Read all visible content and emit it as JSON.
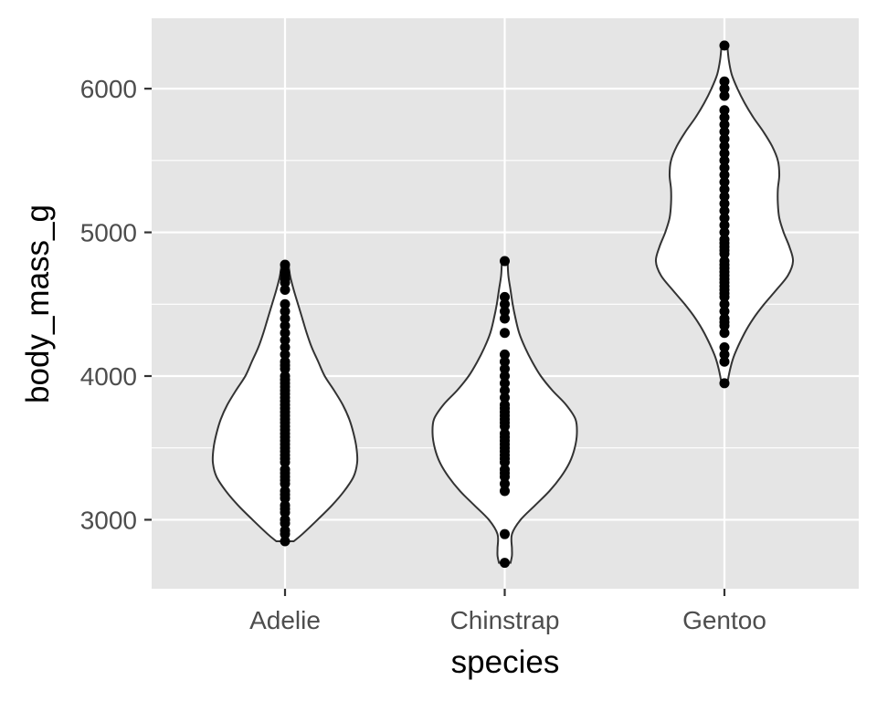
{
  "chart_data": {
    "type": "violin",
    "xlabel": "species",
    "ylabel": "body_mass_g",
    "ylim": [
      2520,
      6490
    ],
    "yticks": [
      3000,
      4000,
      5000,
      6000
    ],
    "ytick_labels": [
      "3000",
      "4000",
      "5000",
      "6000"
    ],
    "categories": [
      "Adelie",
      "Chinstrap",
      "Gentoo"
    ],
    "grid": true,
    "colors": {
      "panel": "#e5e5e5",
      "grid": "#ffffff",
      "violin_fill": "#ffffff",
      "violin_stroke": "#333333",
      "point": "#000000"
    },
    "violins": [
      {
        "category": "Adelie",
        "profile": [
          [
            2850,
            0.12
          ],
          [
            2900,
            0.24
          ],
          [
            3000,
            0.45
          ],
          [
            3100,
            0.65
          ],
          [
            3200,
            0.82
          ],
          [
            3300,
            0.95
          ],
          [
            3400,
            1.0
          ],
          [
            3500,
            0.99
          ],
          [
            3600,
            0.95
          ],
          [
            3700,
            0.89
          ],
          [
            3800,
            0.8
          ],
          [
            3900,
            0.68
          ],
          [
            4000,
            0.55
          ],
          [
            4100,
            0.46
          ],
          [
            4200,
            0.37
          ],
          [
            4300,
            0.3
          ],
          [
            4400,
            0.24
          ],
          [
            4500,
            0.18
          ],
          [
            4600,
            0.12
          ],
          [
            4700,
            0.07
          ],
          [
            4775,
            0.05
          ]
        ],
        "points": [
          2850,
          2900,
          2925,
          2975,
          3000,
          3050,
          3075,
          3100,
          3150,
          3175,
          3200,
          3250,
          3275,
          3300,
          3325,
          3350,
          3400,
          3425,
          3450,
          3475,
          3500,
          3525,
          3550,
          3575,
          3600,
          3625,
          3650,
          3675,
          3700,
          3725,
          3750,
          3775,
          3800,
          3825,
          3850,
          3875,
          3900,
          3925,
          3950,
          3975,
          4000,
          4050,
          4075,
          4100,
          4150,
          4200,
          4250,
          4300,
          4350,
          4400,
          4450,
          4500,
          4600,
          4650,
          4675,
          4700,
          4725,
          4775
        ]
      },
      {
        "category": "Chinstrap",
        "profile": [
          [
            2700,
            0.08
          ],
          [
            2750,
            0.1
          ],
          [
            2800,
            0.1
          ],
          [
            2900,
            0.1
          ],
          [
            3000,
            0.22
          ],
          [
            3100,
            0.42
          ],
          [
            3200,
            0.62
          ],
          [
            3300,
            0.78
          ],
          [
            3400,
            0.9
          ],
          [
            3500,
            0.97
          ],
          [
            3600,
            1.0
          ],
          [
            3700,
            0.98
          ],
          [
            3800,
            0.85
          ],
          [
            3900,
            0.66
          ],
          [
            4000,
            0.5
          ],
          [
            4100,
            0.38
          ],
          [
            4200,
            0.28
          ],
          [
            4300,
            0.2
          ],
          [
            4400,
            0.15
          ],
          [
            4500,
            0.11
          ],
          [
            4600,
            0.08
          ],
          [
            4700,
            0.05
          ],
          [
            4800,
            0.04
          ]
        ],
        "points": [
          2700,
          2900,
          3200,
          3250,
          3300,
          3325,
          3350,
          3400,
          3425,
          3450,
          3475,
          3500,
          3525,
          3550,
          3575,
          3600,
          3650,
          3675,
          3700,
          3725,
          3750,
          3775,
          3800,
          3850,
          3900,
          3950,
          4000,
          4050,
          4100,
          4150,
          4300,
          4400,
          4450,
          4500,
          4550,
          4800
        ]
      },
      {
        "category": "Gentoo",
        "profile": [
          [
            3950,
            0.04
          ],
          [
            4050,
            0.08
          ],
          [
            4150,
            0.14
          ],
          [
            4300,
            0.28
          ],
          [
            4400,
            0.4
          ],
          [
            4500,
            0.55
          ],
          [
            4600,
            0.72
          ],
          [
            4700,
            0.88
          ],
          [
            4800,
            0.95
          ],
          [
            4900,
            0.9
          ],
          [
            5000,
            0.82
          ],
          [
            5100,
            0.76
          ],
          [
            5200,
            0.74
          ],
          [
            5300,
            0.74
          ],
          [
            5400,
            0.76
          ],
          [
            5500,
            0.74
          ],
          [
            5600,
            0.66
          ],
          [
            5700,
            0.54
          ],
          [
            5800,
            0.4
          ],
          [
            5900,
            0.28
          ],
          [
            6000,
            0.18
          ],
          [
            6100,
            0.1
          ],
          [
            6200,
            0.06
          ],
          [
            6300,
            0.04
          ]
        ],
        "points": [
          3950,
          4100,
          4150,
          4200,
          4300,
          4350,
          4375,
          4400,
          4450,
          4500,
          4550,
          4575,
          4600,
          4625,
          4650,
          4675,
          4700,
          4725,
          4750,
          4775,
          4800,
          4850,
          4875,
          4900,
          4925,
          4950,
          5000,
          5050,
          5100,
          5150,
          5200,
          5250,
          5300,
          5350,
          5400,
          5450,
          5500,
          5550,
          5600,
          5650,
          5700,
          5750,
          5800,
          5850,
          5950,
          6000,
          6050,
          6300
        ]
      }
    ]
  }
}
